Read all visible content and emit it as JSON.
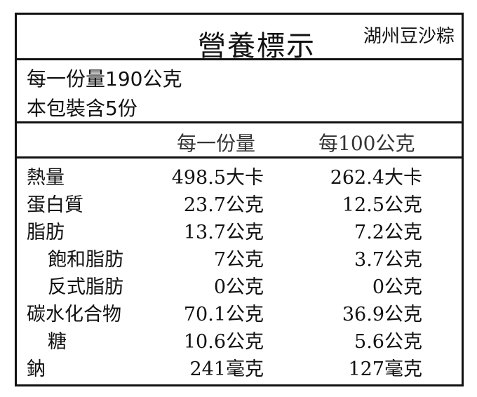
{
  "title": "營養標示",
  "product": "湖州豆沙粽",
  "serving_size": "每一份量190公克",
  "servings": "本包裝含5份",
  "headers": {
    "per_serving": "每一份量",
    "per_100g": "每100公克"
  },
  "rows": [
    {
      "name": "熱量",
      "per_serving": "498.5大卡",
      "per_100g": "262.4大卡",
      "indent": false
    },
    {
      "name": "蛋白質",
      "per_serving": "23.7公克",
      "per_100g": "12.5公克",
      "indent": false
    },
    {
      "name": "脂肪",
      "per_serving": "13.7公克",
      "per_100g": "7.2公克",
      "indent": false
    },
    {
      "name": "飽和脂肪",
      "per_serving": "7公克",
      "per_100g": "3.7公克",
      "indent": true
    },
    {
      "name": "反式脂肪",
      "per_serving": "0公克",
      "per_100g": "0公克",
      "indent": true
    },
    {
      "name": "碳水化合物",
      "per_serving": "70.1公克",
      "per_100g": "36.9公克",
      "indent": false
    },
    {
      "name": "糖",
      "per_serving": "10.6公克",
      "per_100g": "5.6公克",
      "indent": true
    },
    {
      "name": "鈉",
      "per_serving": "241毫克",
      "per_100g": "127毫克",
      "indent": false
    }
  ]
}
